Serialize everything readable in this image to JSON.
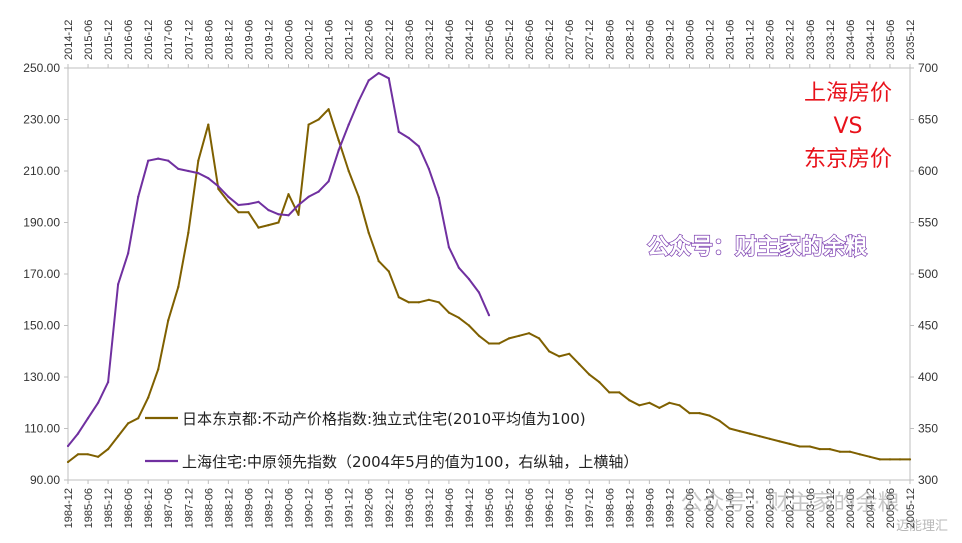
{
  "chart_data": {
    "type": "line",
    "title_lines": [
      "上海房价",
      "VS",
      "东京房价"
    ],
    "watermark": "公众号：财主家的余粮",
    "watermark_bottom": "公众号 · 财主家的余粮",
    "watermark_bottom_small": "迈能理汇",
    "legend_position": "bottom-left",
    "grid": false,
    "left_axis": {
      "range": [
        90,
        250
      ],
      "ticks": [
        "90.00",
        "110.00",
        "130.00",
        "150.00",
        "170.00",
        "190.00",
        "210.00",
        "230.00",
        "250.00"
      ]
    },
    "right_axis": {
      "range": [
        300,
        700
      ],
      "ticks": [
        "300",
        "350",
        "400",
        "450",
        "500",
        "550",
        "600",
        "650",
        "700"
      ]
    },
    "bottom_axis": {
      "range": [
        "1984-12",
        "2005-12"
      ],
      "ticks": [
        "1984-12",
        "1985-06",
        "1985-12",
        "1986-06",
        "1986-12",
        "1987-06",
        "1987-12",
        "1988-06",
        "1988-12",
        "1989-06",
        "1989-12",
        "1990-06",
        "1990-12",
        "1991-06",
        "1991-12",
        "1992-06",
        "1992-12",
        "1993-06",
        "1993-12",
        "1994-06",
        "1994-12",
        "1995-06",
        "1995-12",
        "1996-06",
        "1996-12",
        "1997-06",
        "1997-12",
        "1998-06",
        "1998-12",
        "1999-06",
        "1999-12",
        "2000-06",
        "2000-12",
        "2001-06",
        "2001-12",
        "2002-06",
        "2002-12",
        "2003-06",
        "2003-12",
        "2004-06",
        "2004-12",
        "2005-06",
        "2005-12"
      ]
    },
    "top_axis": {
      "range": [
        "2014-12",
        "2035-12"
      ],
      "ticks": [
        "2014-12",
        "2015-06",
        "2015-12",
        "2016-06",
        "2016-12",
        "2017-06",
        "2017-12",
        "2018-06",
        "2018-12",
        "2019-06",
        "2019-12",
        "2020-06",
        "2020-12",
        "2021-06",
        "2021-12",
        "2022-06",
        "2022-12",
        "2023-06",
        "2023-12",
        "2024-06",
        "2024-12",
        "2025-06",
        "2025-12",
        "2026-06",
        "2026-12",
        "2027-06",
        "2027-12",
        "2028-06",
        "2028-12",
        "2029-06",
        "2029-12",
        "2030-06",
        "2030-12",
        "2031-06",
        "2031-12",
        "2032-06",
        "2032-12",
        "2033-06",
        "2033-12",
        "2034-06",
        "2034-12",
        "2035-06",
        "2035-12"
      ]
    },
    "series": [
      {
        "name": "日本东京都:不动产价格指数:独立式住宅(2010平均值为100)",
        "axis": "left",
        "color": "#7f6000",
        "x": [
          "1984-12",
          "1985-03",
          "1985-06",
          "1985-09",
          "1985-12",
          "1986-03",
          "1986-06",
          "1986-09",
          "1986-12",
          "1987-03",
          "1987-06",
          "1987-09",
          "1987-12",
          "1988-03",
          "1988-06",
          "1988-09",
          "1988-12",
          "1989-03",
          "1989-06",
          "1989-09",
          "1989-12",
          "1990-03",
          "1990-06",
          "1990-09",
          "1990-12",
          "1991-03",
          "1991-06",
          "1991-09",
          "1991-12",
          "1992-03",
          "1992-06",
          "1992-09",
          "1992-12",
          "1993-03",
          "1993-06",
          "1993-09",
          "1993-12",
          "1994-03",
          "1994-06",
          "1994-09",
          "1994-12",
          "1995-03",
          "1995-06",
          "1995-09",
          "1995-12",
          "1996-03",
          "1996-06",
          "1996-09",
          "1996-12",
          "1997-03",
          "1997-06",
          "1997-09",
          "1997-12",
          "1998-03",
          "1998-06",
          "1998-09",
          "1998-12",
          "1999-03",
          "1999-06",
          "1999-09",
          "1999-12",
          "2000-03",
          "2000-06",
          "2000-09",
          "2000-12",
          "2001-03",
          "2001-06",
          "2001-09",
          "2001-12",
          "2002-03",
          "2002-06",
          "2002-09",
          "2002-12",
          "2003-03",
          "2003-06",
          "2003-09",
          "2003-12",
          "2004-03",
          "2004-06",
          "2004-09",
          "2004-12",
          "2005-03",
          "2005-06",
          "2005-09",
          "2005-12"
        ],
        "values": [
          97,
          100,
          100,
          99,
          102,
          107,
          112,
          114,
          122,
          133,
          152,
          165,
          186,
          214,
          228,
          203,
          198,
          194,
          194,
          188,
          189,
          190,
          201,
          193,
          228,
          230,
          234,
          222,
          210,
          200,
          186,
          175,
          171,
          161,
          159,
          159,
          160,
          159,
          155,
          153,
          150,
          146,
          143,
          143,
          145,
          146,
          147,
          145,
          140,
          138,
          139,
          135,
          131,
          128,
          124,
          124,
          121,
          119,
          120,
          118,
          120,
          119,
          116,
          116,
          115,
          113,
          110,
          109,
          108,
          107,
          106,
          105,
          104,
          103,
          103,
          102,
          102,
          101,
          101,
          100,
          99,
          98,
          98,
          98,
          98
        ]
      },
      {
        "name": "上海住宅:中原领先指数（2004年5月的值为100，右纵轴，上横轴）",
        "axis": "right",
        "color": "#7030a0",
        "x": [
          "2014-12",
          "2015-03",
          "2015-06",
          "2015-09",
          "2015-12",
          "2016-03",
          "2016-06",
          "2016-09",
          "2016-12",
          "2017-03",
          "2017-06",
          "2017-09",
          "2017-12",
          "2018-03",
          "2018-06",
          "2018-09",
          "2018-12",
          "2019-03",
          "2019-06",
          "2019-09",
          "2019-12",
          "2020-03",
          "2020-06",
          "2020-09",
          "2020-12",
          "2021-03",
          "2021-06",
          "2021-09",
          "2021-12",
          "2022-03",
          "2022-06",
          "2022-09",
          "2022-12",
          "2023-03",
          "2023-06",
          "2023-09",
          "2023-12",
          "2024-03",
          "2024-06",
          "2024-09",
          "2024-12",
          "2025-03",
          "2025-06"
        ],
        "values": [
          333,
          345,
          360,
          375,
          395,
          490,
          520,
          575,
          610,
          612,
          610,
          602,
          600,
          598,
          593,
          585,
          575,
          567,
          568,
          570,
          562,
          558,
          557,
          567,
          575,
          580,
          590,
          620,
          645,
          668,
          688,
          695,
          690,
          638,
          632,
          624,
          602,
          574,
          526,
          506,
          495,
          482,
          460
        ]
      }
    ]
  }
}
